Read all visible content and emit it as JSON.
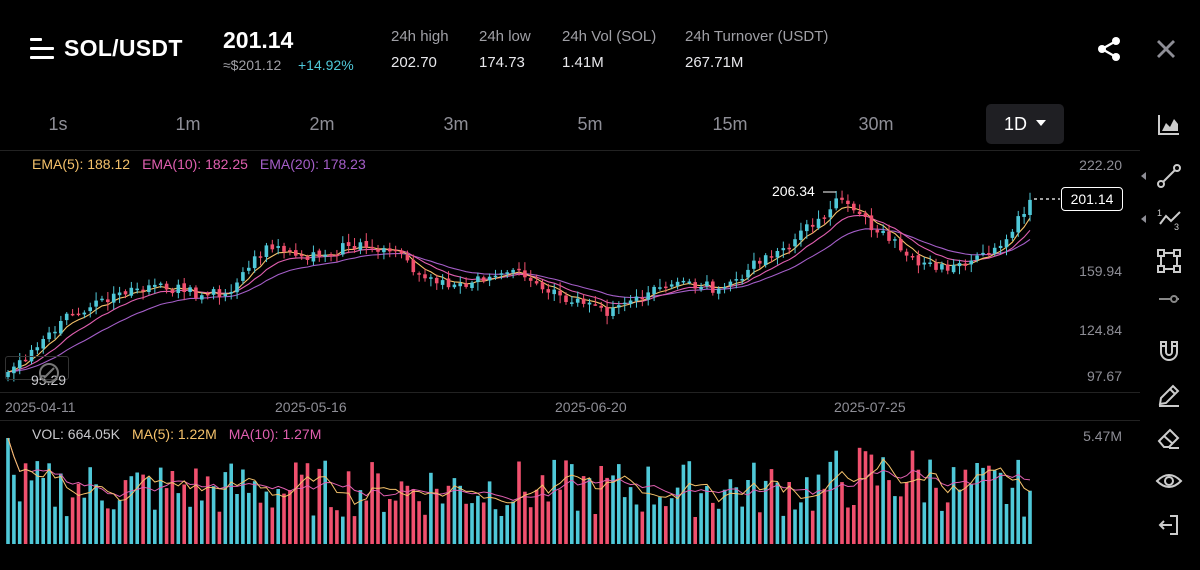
{
  "header": {
    "pair": "SOL/USDT",
    "last_price": "201.14",
    "approx_usd": "≈$201.12",
    "change_pct": "+14.92%",
    "stats": [
      {
        "label": "24h high",
        "value": "202.70"
      },
      {
        "label": "24h low",
        "value": "174.73"
      },
      {
        "label": "24h Vol (SOL)",
        "value": "1.41M"
      },
      {
        "label": "24h Turnover (USDT)",
        "value": "267.71M"
      }
    ]
  },
  "intervals": {
    "tabs": [
      "1s",
      "1m",
      "2m",
      "3m",
      "5m",
      "15m",
      "30m"
    ],
    "active": "1D"
  },
  "indicators": {
    "ema5": "EMA(5): 188.12",
    "ema10": "EMA(10): 182.25",
    "ema20": "EMA(20): 178.23",
    "vol": "VOL: 664.05K",
    "ma5": "MA(5): 1.22M",
    "ma10": "MA(10): 1.27M"
  },
  "colors": {
    "up": "#4fc8d8",
    "down": "#f0506e",
    "ema5": "#f5c26b",
    "ema10": "#e05fb0",
    "ema20": "#a45ec8",
    "change": "#4fc8d8"
  },
  "chart_data": {
    "type": "candlestick",
    "y_ticks": [
      "222.20",
      "159.94",
      "124.84",
      "97.67"
    ],
    "ylim": [
      80,
      230
    ],
    "x_labels": [
      "2025-04-11",
      "2025-05-16",
      "2025-06-20",
      "2025-07-25"
    ],
    "high_label": "206.34",
    "low_label": "95.29",
    "last_price_tag": "201.14",
    "volume_max_label": "5.47M",
    "close_anchors": [
      {
        "day": 0,
        "close": 100
      },
      {
        "day": 4,
        "close": 113
      },
      {
        "day": 9,
        "close": 130
      },
      {
        "day": 14,
        "close": 138
      },
      {
        "day": 18,
        "close": 146
      },
      {
        "day": 22,
        "close": 149
      },
      {
        "day": 26,
        "close": 152
      },
      {
        "day": 30,
        "close": 147
      },
      {
        "day": 34,
        "close": 145
      },
      {
        "day": 38,
        "close": 147
      },
      {
        "day": 42,
        "close": 168
      },
      {
        "day": 46,
        "close": 174
      },
      {
        "day": 50,
        "close": 168
      },
      {
        "day": 54,
        "close": 169
      },
      {
        "day": 58,
        "close": 174
      },
      {
        "day": 62,
        "close": 173
      },
      {
        "day": 66,
        "close": 171
      },
      {
        "day": 70,
        "close": 158
      },
      {
        "day": 74,
        "close": 154
      },
      {
        "day": 78,
        "close": 150
      },
      {
        "day": 82,
        "close": 156
      },
      {
        "day": 86,
        "close": 160
      },
      {
        "day": 90,
        "close": 152
      },
      {
        "day": 94,
        "close": 145
      },
      {
        "day": 98,
        "close": 140
      },
      {
        "day": 102,
        "close": 133
      },
      {
        "day": 106,
        "close": 142
      },
      {
        "day": 110,
        "close": 150
      },
      {
        "day": 114,
        "close": 153
      },
      {
        "day": 118,
        "close": 150
      },
      {
        "day": 122,
        "close": 150
      },
      {
        "day": 126,
        "close": 160
      },
      {
        "day": 130,
        "close": 168
      },
      {
        "day": 134,
        "close": 178
      },
      {
        "day": 138,
        "close": 190
      },
      {
        "day": 141,
        "close": 202
      },
      {
        "day": 144,
        "close": 195
      },
      {
        "day": 148,
        "close": 182
      },
      {
        "day": 151,
        "close": 178
      },
      {
        "day": 154,
        "close": 168
      },
      {
        "day": 158,
        "close": 160
      },
      {
        "day": 162,
        "close": 164
      },
      {
        "day": 166,
        "close": 170
      },
      {
        "day": 170,
        "close": 178
      },
      {
        "day": 174,
        "close": 201.14
      }
    ]
  },
  "toolbar": {
    "icons": [
      "chart-type-icon",
      "trend-line-icon",
      "fibonacci-icon",
      "shape-icon",
      "ruler-icon",
      "magnet-icon",
      "pencil-icon",
      "eraser-icon",
      "visibility-icon",
      "exit-icon"
    ]
  }
}
